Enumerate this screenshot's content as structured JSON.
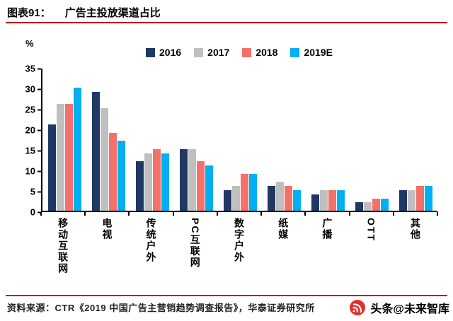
{
  "header": {
    "chart_label": "图表91：",
    "title": "广告主投放渠道占比"
  },
  "chart_data": {
    "type": "bar",
    "title": "广告主投放渠道占比",
    "ylabel": "%",
    "ylim": [
      0,
      35
    ],
    "ytick_step": 5,
    "grid": false,
    "legend_position": "top-center",
    "categories": [
      "移动互联网",
      "电视",
      "传统户外",
      "PC互联网",
      "数字户外",
      "纸媒",
      "广播",
      "OTT",
      "其他"
    ],
    "series": [
      {
        "name": "2016",
        "color": "#1f3864",
        "values": [
          21,
          29,
          12,
          15,
          5,
          6,
          4,
          2,
          5
        ]
      },
      {
        "name": "2017",
        "color": "#bfbfbf",
        "values": [
          26,
          25,
          14,
          15,
          6,
          7,
          5,
          2,
          5
        ]
      },
      {
        "name": "2018",
        "color": "#f3716d",
        "values": [
          26,
          19,
          15,
          12,
          9,
          6,
          5,
          3,
          6
        ]
      },
      {
        "name": "2019E",
        "color": "#00b0f0",
        "values": [
          30,
          17,
          14,
          11,
          9,
          5,
          5,
          3,
          6
        ]
      }
    ]
  },
  "footer": {
    "source": "资料来源：CTR《2019 中国广告主营销趋势调查报告》，华泰证券研究所"
  },
  "watermark": {
    "text": "头条@未来智库"
  },
  "colors": {
    "rule_red": "#c00000"
  }
}
